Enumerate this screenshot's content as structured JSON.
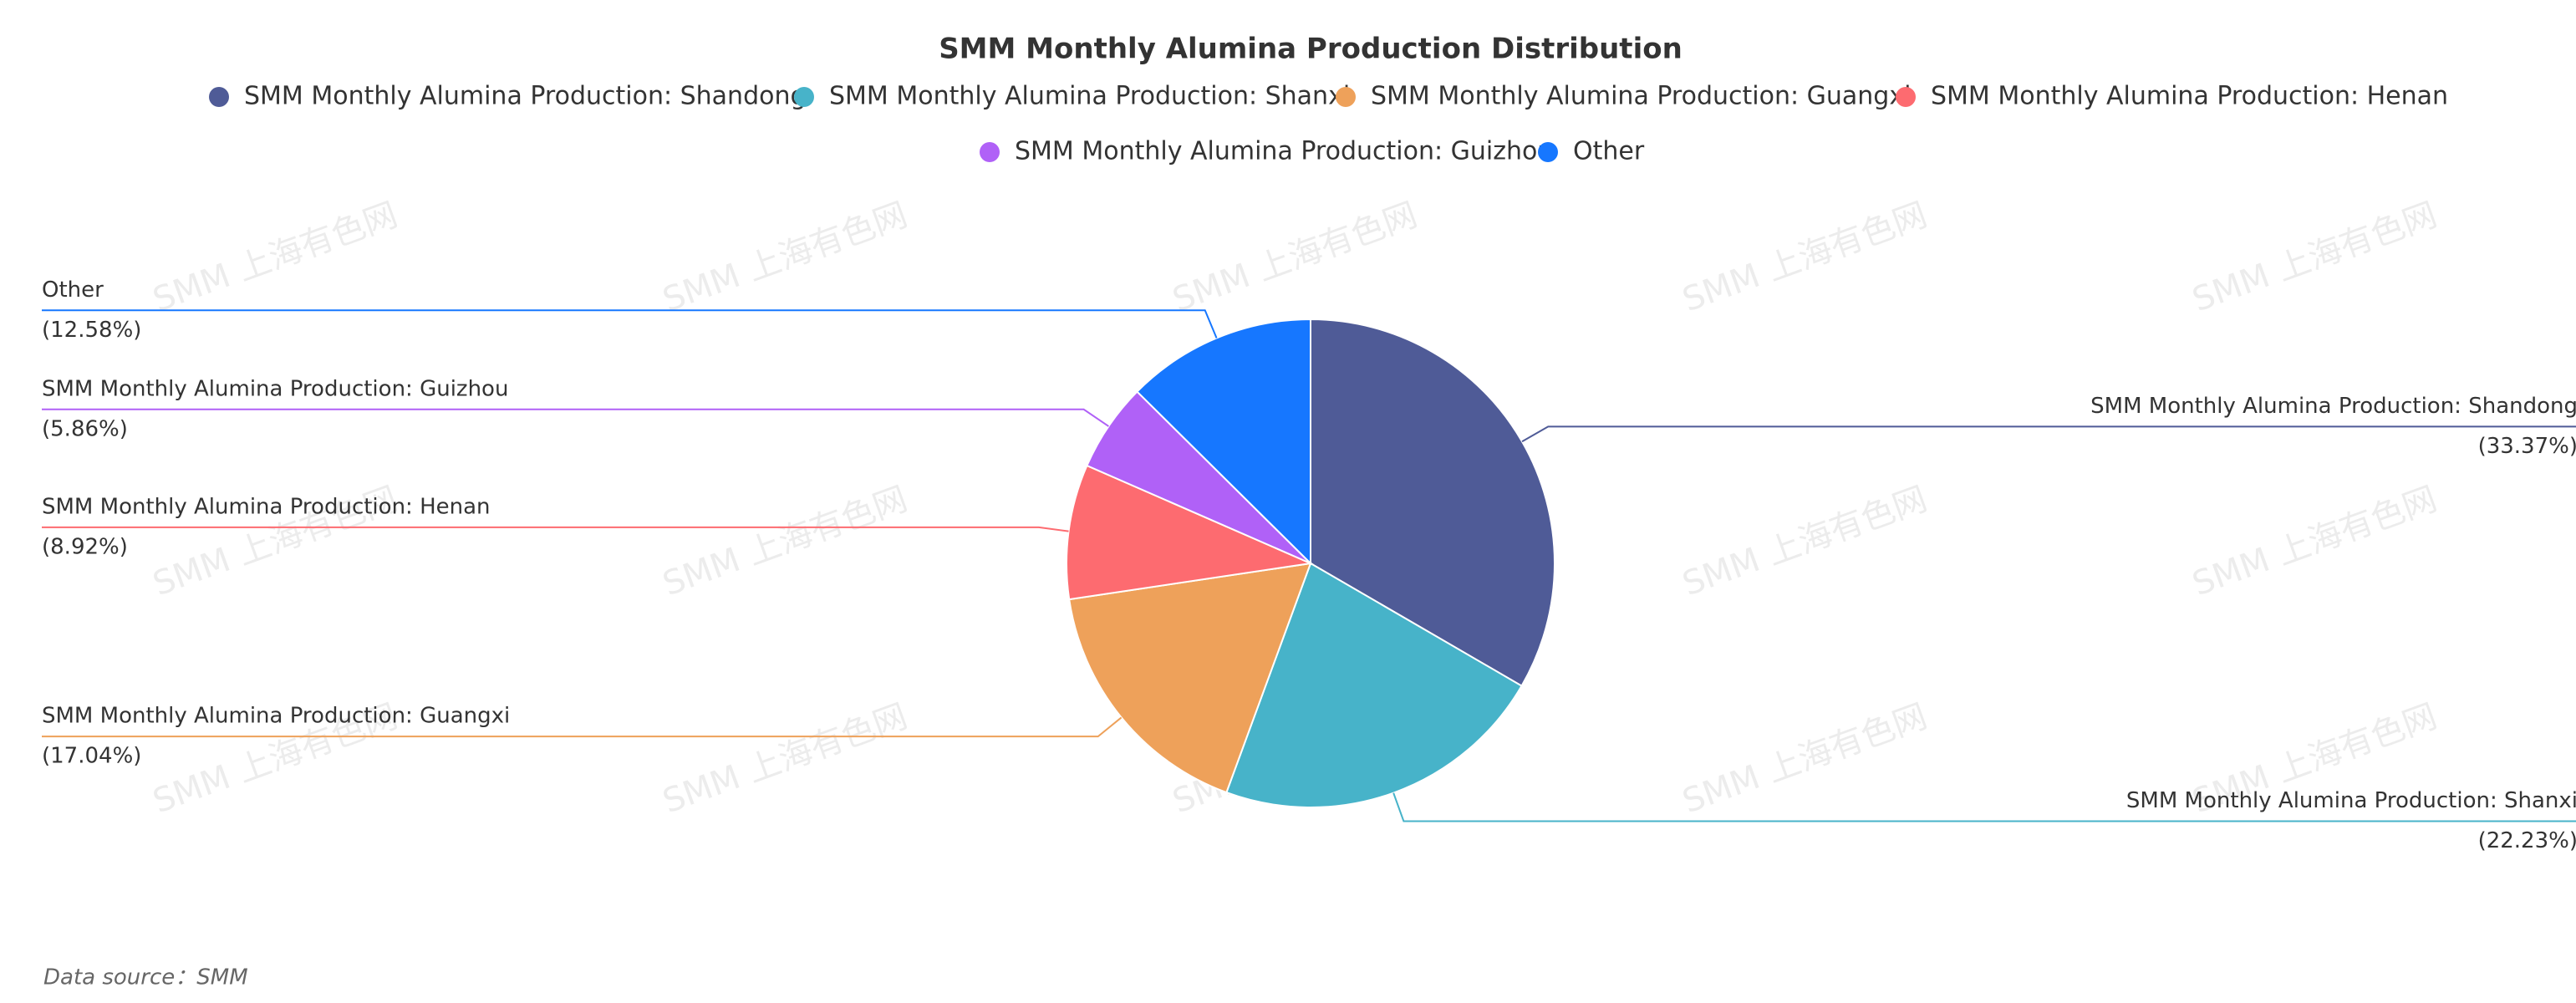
{
  "chart_data": {
    "type": "pie",
    "title": "SMM Monthly Alumina Production Distribution",
    "series": [
      {
        "name": "SMM Monthly Alumina Production: Shandong",
        "color": "#4f5b97",
        "values": [
          33.37
        ],
        "value_labels": [
          "(33.37%)"
        ]
      },
      {
        "name": "SMM Monthly Alumina Production: Shanxi",
        "color": "#47b3c9",
        "values": [
          22.23
        ],
        "value_labels": [
          "(22.23%)"
        ]
      },
      {
        "name": "SMM Monthly Alumina Production: Guangxi",
        "color": "#eea15a",
        "values": [
          17.04
        ],
        "value_labels": [
          "(17.04%)"
        ]
      },
      {
        "name": "SMM Monthly Alumina Production: Henan",
        "color": "#fd6b70",
        "values": [
          8.92
        ],
        "value_labels": [
          "(8.92%)"
        ]
      },
      {
        "name": "SMM Monthly Alumina Production: Guizhou",
        "color": "#b061f7",
        "values": [
          5.86
        ],
        "value_labels": [
          "(5.86%)"
        ]
      },
      {
        "name": "Other",
        "color": "#1677ff",
        "values": [
          12.58
        ],
        "value_labels": [
          "(12.58%)"
        ]
      }
    ],
    "source": "Data source：SMM",
    "watermark": "SMM 上海有色网"
  }
}
